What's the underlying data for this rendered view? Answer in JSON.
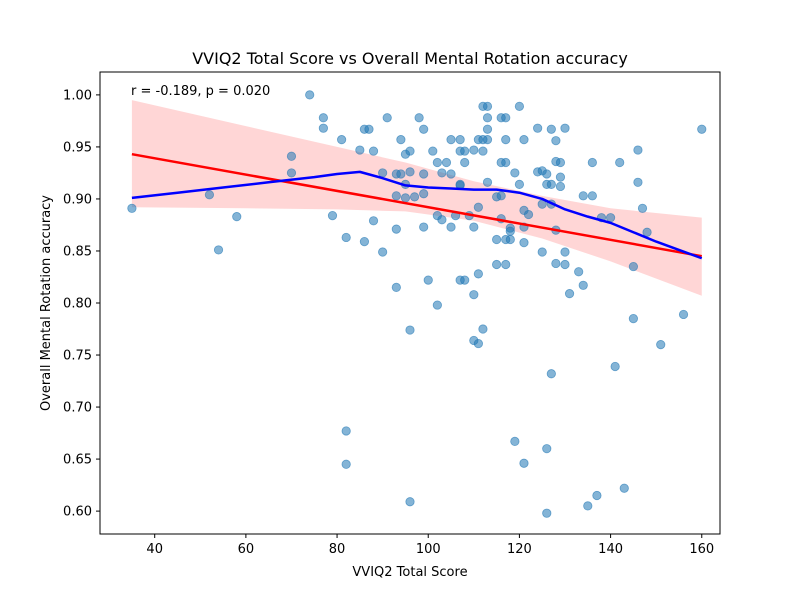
{
  "chart_data": {
    "type": "scatter",
    "title": "VVIQ2 Total Score vs Overall Mental Rotation accuracy",
    "xlabel": "VVIQ2 Total Score",
    "ylabel": "Overall Mental Rotation accuracy",
    "xlim": [
      28,
      164
    ],
    "ylim": [
      0.578,
      1.022
    ],
    "xticks": [
      40,
      60,
      80,
      100,
      120,
      140,
      160
    ],
    "yticks": [
      0.6,
      0.65,
      0.7,
      0.75,
      0.8,
      0.85,
      0.9,
      0.95,
      1.0
    ],
    "grid": false,
    "annotation": "r = -0.189, p = 0.020",
    "colors": {
      "points": "#1f77b4",
      "regression": "#ff0000",
      "ci_band": "#ffcccc",
      "lowess": "#0000ff"
    },
    "points": [
      {
        "x": 35,
        "y": 0.891
      },
      {
        "x": 52,
        "y": 0.904
      },
      {
        "x": 54,
        "y": 0.851
      },
      {
        "x": 58,
        "y": 0.883
      },
      {
        "x": 70,
        "y": 0.941
      },
      {
        "x": 70,
        "y": 0.925
      },
      {
        "x": 74,
        "y": 1.0
      },
      {
        "x": 77,
        "y": 0.978
      },
      {
        "x": 77,
        "y": 0.968
      },
      {
        "x": 79,
        "y": 0.884
      },
      {
        "x": 81,
        "y": 0.957
      },
      {
        "x": 82,
        "y": 0.863
      },
      {
        "x": 82,
        "y": 0.677
      },
      {
        "x": 82,
        "y": 0.645
      },
      {
        "x": 85,
        "y": 0.947
      },
      {
        "x": 86,
        "y": 0.967
      },
      {
        "x": 86,
        "y": 0.859
      },
      {
        "x": 87,
        "y": 0.967
      },
      {
        "x": 88,
        "y": 0.946
      },
      {
        "x": 88,
        "y": 0.879
      },
      {
        "x": 90,
        "y": 0.925
      },
      {
        "x": 90,
        "y": 0.849
      },
      {
        "x": 91,
        "y": 0.978
      },
      {
        "x": 93,
        "y": 0.924
      },
      {
        "x": 93,
        "y": 0.903
      },
      {
        "x": 93,
        "y": 0.871
      },
      {
        "x": 93,
        "y": 0.815
      },
      {
        "x": 94,
        "y": 0.957
      },
      {
        "x": 94,
        "y": 0.924
      },
      {
        "x": 95,
        "y": 0.943
      },
      {
        "x": 95,
        "y": 0.914
      },
      {
        "x": 95,
        "y": 0.901
      },
      {
        "x": 96,
        "y": 0.946
      },
      {
        "x": 96,
        "y": 0.926
      },
      {
        "x": 96,
        "y": 0.774
      },
      {
        "x": 96,
        "y": 0.609
      },
      {
        "x": 97,
        "y": 0.902
      },
      {
        "x": 98,
        "y": 0.978
      },
      {
        "x": 99,
        "y": 0.967
      },
      {
        "x": 99,
        "y": 0.924
      },
      {
        "x": 99,
        "y": 0.905
      },
      {
        "x": 99,
        "y": 0.873
      },
      {
        "x": 100,
        "y": 0.822
      },
      {
        "x": 101,
        "y": 0.946
      },
      {
        "x": 102,
        "y": 0.935
      },
      {
        "x": 102,
        "y": 0.884
      },
      {
        "x": 102,
        "y": 0.798
      },
      {
        "x": 103,
        "y": 0.925
      },
      {
        "x": 103,
        "y": 0.88
      },
      {
        "x": 104,
        "y": 0.935
      },
      {
        "x": 105,
        "y": 0.957
      },
      {
        "x": 105,
        "y": 0.924
      },
      {
        "x": 105,
        "y": 0.873
      },
      {
        "x": 106,
        "y": 0.884
      },
      {
        "x": 107,
        "y": 0.957
      },
      {
        "x": 107,
        "y": 0.946
      },
      {
        "x": 107,
        "y": 0.914
      },
      {
        "x": 107,
        "y": 0.913
      },
      {
        "x": 107,
        "y": 0.822
      },
      {
        "x": 108,
        "y": 0.946
      },
      {
        "x": 108,
        "y": 0.935
      },
      {
        "x": 108,
        "y": 0.822
      },
      {
        "x": 109,
        "y": 0.884
      },
      {
        "x": 110,
        "y": 0.947
      },
      {
        "x": 110,
        "y": 0.873
      },
      {
        "x": 110,
        "y": 0.808
      },
      {
        "x": 110,
        "y": 0.764
      },
      {
        "x": 111,
        "y": 0.957
      },
      {
        "x": 111,
        "y": 0.892
      },
      {
        "x": 111,
        "y": 0.828
      },
      {
        "x": 111,
        "y": 0.761
      },
      {
        "x": 112,
        "y": 0.989
      },
      {
        "x": 112,
        "y": 0.957
      },
      {
        "x": 112,
        "y": 0.946
      },
      {
        "x": 112,
        "y": 0.775
      },
      {
        "x": 113,
        "y": 0.989
      },
      {
        "x": 113,
        "y": 0.978
      },
      {
        "x": 113,
        "y": 0.967
      },
      {
        "x": 113,
        "y": 0.957
      },
      {
        "x": 113,
        "y": 0.916
      },
      {
        "x": 115,
        "y": 0.902
      },
      {
        "x": 115,
        "y": 0.861
      },
      {
        "x": 115,
        "y": 0.837
      },
      {
        "x": 116,
        "y": 0.978
      },
      {
        "x": 116,
        "y": 0.935
      },
      {
        "x": 116,
        "y": 0.903
      },
      {
        "x": 116,
        "y": 0.881
      },
      {
        "x": 117,
        "y": 0.978
      },
      {
        "x": 117,
        "y": 0.957
      },
      {
        "x": 117,
        "y": 0.935
      },
      {
        "x": 117,
        "y": 0.861
      },
      {
        "x": 117,
        "y": 0.837
      },
      {
        "x": 118,
        "y": 0.872
      },
      {
        "x": 118,
        "y": 0.869
      },
      {
        "x": 118,
        "y": 0.861
      },
      {
        "x": 119,
        "y": 0.925
      },
      {
        "x": 119,
        "y": 0.667
      },
      {
        "x": 120,
        "y": 0.989
      },
      {
        "x": 120,
        "y": 0.914
      },
      {
        "x": 121,
        "y": 0.957
      },
      {
        "x": 121,
        "y": 0.889
      },
      {
        "x": 121,
        "y": 0.873
      },
      {
        "x": 121,
        "y": 0.858
      },
      {
        "x": 121,
        "y": 0.646
      },
      {
        "x": 122,
        "y": 0.885
      },
      {
        "x": 124,
        "y": 0.968
      },
      {
        "x": 124,
        "y": 0.926
      },
      {
        "x": 125,
        "y": 0.927
      },
      {
        "x": 125,
        "y": 0.895
      },
      {
        "x": 125,
        "y": 0.849
      },
      {
        "x": 126,
        "y": 0.924
      },
      {
        "x": 126,
        "y": 0.914
      },
      {
        "x": 126,
        "y": 0.66
      },
      {
        "x": 126,
        "y": 0.598
      },
      {
        "x": 127,
        "y": 0.967
      },
      {
        "x": 127,
        "y": 0.914
      },
      {
        "x": 127,
        "y": 0.895
      },
      {
        "x": 127,
        "y": 0.732
      },
      {
        "x": 128,
        "y": 0.956
      },
      {
        "x": 128,
        "y": 0.936
      },
      {
        "x": 128,
        "y": 0.87
      },
      {
        "x": 128,
        "y": 0.838
      },
      {
        "x": 129,
        "y": 0.935
      },
      {
        "x": 129,
        "y": 0.921
      },
      {
        "x": 129,
        "y": 0.912
      },
      {
        "x": 130,
        "y": 0.968
      },
      {
        "x": 130,
        "y": 0.849
      },
      {
        "x": 130,
        "y": 0.837
      },
      {
        "x": 131,
        "y": 0.809
      },
      {
        "x": 133,
        "y": 0.83
      },
      {
        "x": 134,
        "y": 0.903
      },
      {
        "x": 134,
        "y": 0.817
      },
      {
        "x": 135,
        "y": 0.605
      },
      {
        "x": 136,
        "y": 0.935
      },
      {
        "x": 136,
        "y": 0.903
      },
      {
        "x": 137,
        "y": 0.615
      },
      {
        "x": 138,
        "y": 0.882
      },
      {
        "x": 140,
        "y": 0.882
      },
      {
        "x": 141,
        "y": 0.739
      },
      {
        "x": 142,
        "y": 0.935
      },
      {
        "x": 143,
        "y": 0.622
      },
      {
        "x": 145,
        "y": 0.835
      },
      {
        "x": 145,
        "y": 0.785
      },
      {
        "x": 146,
        "y": 0.947
      },
      {
        "x": 146,
        "y": 0.916
      },
      {
        "x": 147,
        "y": 0.891
      },
      {
        "x": 148,
        "y": 0.868
      },
      {
        "x": 151,
        "y": 0.76
      },
      {
        "x": 156,
        "y": 0.789
      },
      {
        "x": 160,
        "y": 0.967
      }
    ],
    "regression_line": [
      {
        "x": 35,
        "y": 0.943
      },
      {
        "x": 160,
        "y": 0.845
      }
    ],
    "ci_band": {
      "upper": [
        {
          "x": 35,
          "y": 0.995
        },
        {
          "x": 60,
          "y": 0.97
        },
        {
          "x": 80,
          "y": 0.95
        },
        {
          "x": 95,
          "y": 0.935
        },
        {
          "x": 110,
          "y": 0.917
        },
        {
          "x": 125,
          "y": 0.903
        },
        {
          "x": 140,
          "y": 0.891
        },
        {
          "x": 160,
          "y": 0.882
        }
      ],
      "lower": [
        {
          "x": 35,
          "y": 0.892
        },
        {
          "x": 60,
          "y": 0.891
        },
        {
          "x": 80,
          "y": 0.89
        },
        {
          "x": 95,
          "y": 0.888
        },
        {
          "x": 110,
          "y": 0.879
        },
        {
          "x": 125,
          "y": 0.862
        },
        {
          "x": 140,
          "y": 0.84
        },
        {
          "x": 160,
          "y": 0.807
        }
      ]
    },
    "lowess_line": [
      {
        "x": 35,
        "y": 0.901
      },
      {
        "x": 45,
        "y": 0.906
      },
      {
        "x": 55,
        "y": 0.911
      },
      {
        "x": 65,
        "y": 0.916
      },
      {
        "x": 75,
        "y": 0.921
      },
      {
        "x": 80,
        "y": 0.924
      },
      {
        "x": 85,
        "y": 0.926
      },
      {
        "x": 90,
        "y": 0.92
      },
      {
        "x": 95,
        "y": 0.913
      },
      {
        "x": 100,
        "y": 0.911
      },
      {
        "x": 105,
        "y": 0.91
      },
      {
        "x": 110,
        "y": 0.909
      },
      {
        "x": 115,
        "y": 0.909
      },
      {
        "x": 120,
        "y": 0.906
      },
      {
        "x": 125,
        "y": 0.9
      },
      {
        "x": 130,
        "y": 0.89
      },
      {
        "x": 135,
        "y": 0.883
      },
      {
        "x": 140,
        "y": 0.877
      },
      {
        "x": 145,
        "y": 0.868
      },
      {
        "x": 150,
        "y": 0.859
      },
      {
        "x": 155,
        "y": 0.851
      },
      {
        "x": 160,
        "y": 0.843
      }
    ]
  }
}
